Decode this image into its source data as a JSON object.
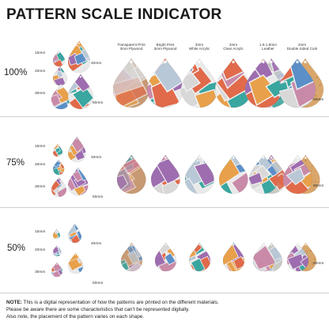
{
  "title": "PATTERN SCALE INDICATOR",
  "materials": [
    "Transparent Print\n3mm Plywood",
    "Bright Print\n3mm Plywood",
    "3mm\nWhite Acrylic",
    "3mm\nClear Acrylic",
    "1.6-1.8mm\nLeather",
    "2mm\nDouble Sided Cork"
  ],
  "sizes": [
    "15mm",
    "20mm",
    "30mm",
    "40mm",
    "50mm",
    "60mm"
  ],
  "scales": [
    {
      "label": "100%"
    },
    {
      "label": "75%"
    },
    {
      "label": "50%"
    }
  ],
  "note": {
    "label": "NOTE:",
    "line1": " This is a digital representation of how the patterns are printed on the different materials.",
    "line2": "Please be aware there are some characteristics that can't be represented digitally.",
    "line3": "Also note, the placement of the pattern varies on each shape."
  },
  "colors": {
    "pattern": [
      "#3aa6a0",
      "#e06a4a",
      "#9e6db0",
      "#c98aa8",
      "#5b8fc7",
      "#e8a04a",
      "#d8d8d8",
      "#b9c8d6"
    ],
    "cork": "#d9a66b",
    "wood": "#c79a73",
    "leather": "#c9c9c4"
  }
}
